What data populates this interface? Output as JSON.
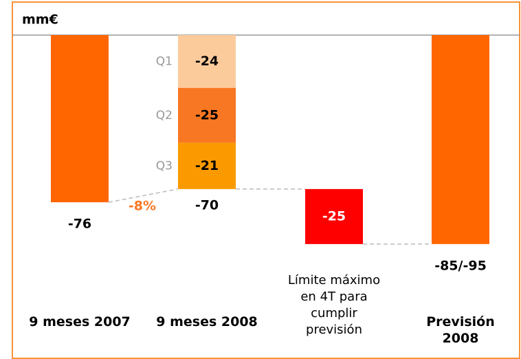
{
  "chart_data": {
    "type": "waterfall",
    "title": "mm€",
    "ylim": [
      0,
      -146
    ],
    "bars": [
      {
        "category": "9 meses 2007",
        "value": -76,
        "color": "#ff6600"
      },
      {
        "category": "9 meses 2008",
        "total": -70,
        "segments": [
          {
            "name": "Q1",
            "value": -24,
            "color": "#fccb9c"
          },
          {
            "name": "Q2",
            "value": -25,
            "color": "#f87722"
          },
          {
            "name": "Q3",
            "value": -21,
            "color": "#fb9a00"
          }
        ]
      },
      {
        "category": "Límite máximo en 4T para cumplir previsión",
        "value": -25,
        "float": true,
        "color": "#ff0000",
        "label_color": "#ffffff"
      },
      {
        "category": "Previsión 2008",
        "value": -95,
        "value_label": "-85/-95",
        "color": "#ff6600"
      }
    ],
    "annotations": [
      {
        "text": "-8%",
        "color": "#f87722"
      }
    ]
  }
}
